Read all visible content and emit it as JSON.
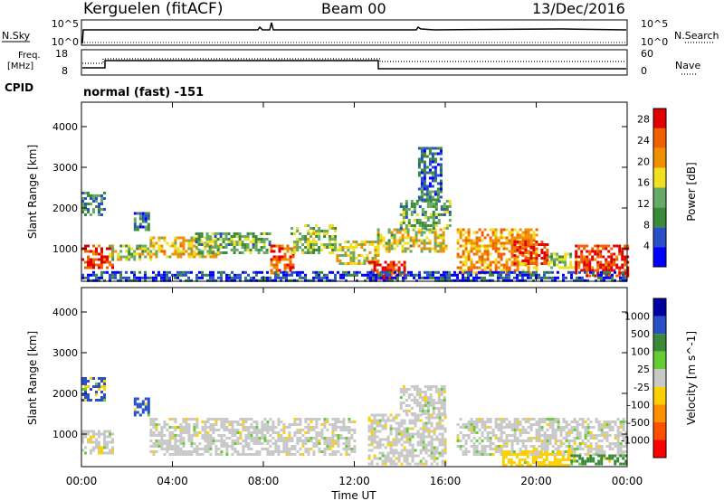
{
  "header": {
    "station": "Kerguelen (fitACF)",
    "beam": "Beam 00",
    "date": "13/Dec/2016"
  },
  "noise_panel": {
    "left_label": "N.Sky",
    "right_label": "N.Search",
    "left_ticks": [
      "10^5",
      "10^0"
    ],
    "right_ticks": [
      "10^5",
      "10^0"
    ]
  },
  "freq_panel": {
    "left_label_line1": "Freq.",
    "left_label_line2": "[MHz]",
    "right_label": "Nave",
    "left_ticks": [
      "18",
      "8"
    ],
    "right_ticks": [
      "60",
      "0"
    ]
  },
  "cpid": {
    "label": "CPID",
    "program": "normal (fast) -151"
  },
  "colors": {
    "power_scale": [
      "#0000ff",
      "#2a50c8",
      "#3a8a3a",
      "#66aa66",
      "#f0e020",
      "#f09000",
      "#f06000",
      "#e00000"
    ],
    "velocity_scale": [
      "#0000a0",
      "#2a50c8",
      "#3a8a3a",
      "#66cc33",
      "#c8c8c8",
      "#ffd000",
      "#ff9000",
      "#ff5000",
      "#ff0000"
    ]
  },
  "chart_data": [
    {
      "type": "heatmap",
      "panel": "power",
      "ylabel": "Slant Range [km]",
      "xlabel": "Time UT",
      "x_ticks": [
        "00:00",
        "04:00",
        "08:00",
        "12:00",
        "16:00",
        "20:00",
        "00:00"
      ],
      "x_range_hours": [
        0,
        24
      ],
      "y_ticks": [
        1000,
        2000,
        3000,
        4000
      ],
      "ylim": [
        200,
        4600
      ],
      "colorbar_label": "Power [dB]",
      "colorbar_ticks": [
        4,
        8,
        12,
        16,
        20,
        24,
        28
      ],
      "colorbar_range": [
        0,
        30
      ],
      "echo_regions": [
        {
          "t0": 0.0,
          "t1": 1.4,
          "r0": 500,
          "r1": 1100,
          "level": 26
        },
        {
          "t0": 0.0,
          "t1": 1.0,
          "r0": 1800,
          "r1": 2400,
          "level": 10
        },
        {
          "t0": 1.2,
          "t1": 3.0,
          "r0": 700,
          "r1": 1100,
          "level": 15
        },
        {
          "t0": 2.3,
          "t1": 3.0,
          "r0": 1450,
          "r1": 1900,
          "level": 8
        },
        {
          "t0": 3.0,
          "t1": 6.0,
          "r0": 800,
          "r1": 1300,
          "level": 18
        },
        {
          "t0": 5.0,
          "t1": 8.3,
          "r0": 900,
          "r1": 1400,
          "level": 12
        },
        {
          "t0": 8.3,
          "t1": 9.3,
          "r0": 400,
          "r1": 1100,
          "level": 24
        },
        {
          "t0": 9.2,
          "t1": 11.2,
          "r0": 900,
          "r1": 1600,
          "level": 14
        },
        {
          "t0": 11.2,
          "t1": 13.0,
          "r0": 600,
          "r1": 1200,
          "level": 17
        },
        {
          "t0": 12.6,
          "t1": 14.2,
          "r0": 250,
          "r1": 700,
          "level": 27
        },
        {
          "t0": 13.0,
          "t1": 16.0,
          "r0": 900,
          "r1": 1500,
          "level": 16
        },
        {
          "t0": 14.0,
          "t1": 16.2,
          "r0": 1500,
          "r1": 2200,
          "level": 11
        },
        {
          "t0": 14.8,
          "t1": 15.8,
          "r0": 2200,
          "r1": 3500,
          "level": 7
        },
        {
          "t0": 16.5,
          "t1": 20.0,
          "r0": 400,
          "r1": 1500,
          "level": 21
        },
        {
          "t0": 19.0,
          "t1": 20.5,
          "r0": 600,
          "r1": 1200,
          "level": 27
        },
        {
          "t0": 20.5,
          "t1": 21.7,
          "r0": 500,
          "r1": 900,
          "level": 14
        },
        {
          "t0": 21.7,
          "t1": 24.0,
          "r0": 300,
          "r1": 1100,
          "level": 27
        },
        {
          "t0": 0.0,
          "t1": 24.0,
          "r0": 200,
          "r1": 450,
          "level": 5
        }
      ]
    },
    {
      "type": "heatmap",
      "panel": "velocity",
      "ylabel": "Slant Range [km]",
      "xlabel": "Time UT",
      "x_ticks": [
        "00:00",
        "04:00",
        "08:00",
        "12:00",
        "16:00",
        "20:00",
        "00:00"
      ],
      "x_range_hours": [
        0,
        24
      ],
      "y_ticks": [
        1000,
        2000,
        3000,
        4000
      ],
      "ylim": [
        200,
        4600
      ],
      "colorbar_label": "Velocity [m s^-1]",
      "colorbar_ticks": [
        "1000",
        "500",
        "100",
        "25",
        "-25",
        "-100",
        "-500",
        "-1000"
      ],
      "echo_regions": [
        {
          "t0": 0.0,
          "t1": 1.4,
          "r0": 500,
          "r1": 1100,
          "level": "-25..25"
        },
        {
          "t0": 0.0,
          "t1": 1.0,
          "r0": 1800,
          "r1": 2400,
          "level": "500..1000"
        },
        {
          "t0": 2.3,
          "t1": 3.0,
          "r0": 1450,
          "r1": 1900,
          "level": "500..1000"
        },
        {
          "t0": 3.0,
          "t1": 12.0,
          "r0": 500,
          "r1": 1400,
          "level": "-25..25"
        },
        {
          "t0": 12.6,
          "t1": 16.0,
          "r0": 250,
          "r1": 1500,
          "level": "-25..25"
        },
        {
          "t0": 14.0,
          "t1": 16.0,
          "r0": 1500,
          "r1": 2200,
          "level": "-25..25"
        },
        {
          "t0": 16.5,
          "t1": 24.0,
          "r0": 500,
          "r1": 1400,
          "level": "-25..25"
        },
        {
          "t0": 18.5,
          "t1": 21.5,
          "r0": 250,
          "r1": 600,
          "level": "-100..-25"
        },
        {
          "t0": 21.5,
          "t1": 24.0,
          "r0": 250,
          "r1": 500,
          "level": "100..500"
        }
      ]
    }
  ]
}
